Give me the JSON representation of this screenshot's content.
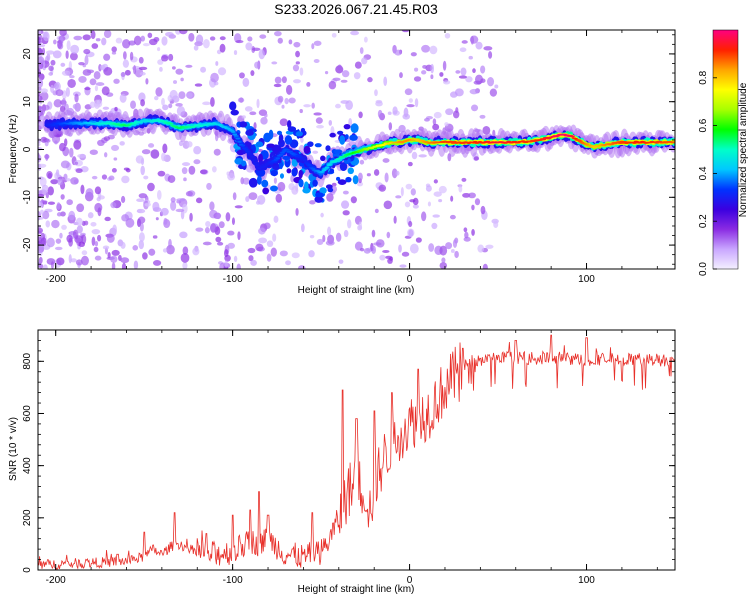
{
  "figure_title": "S233.2026.067.21.45.R03",
  "chart_data": [
    {
      "type": "heatmap",
      "name": "spectrogram",
      "xlabel": "Height of straight line (km)",
      "ylabel": "Frequency (Hz)",
      "xlim": [
        -210,
        150
      ],
      "ylim": [
        -25,
        25
      ],
      "xticks": [
        -200,
        -100,
        0,
        100
      ],
      "yticks": [
        -20,
        -10,
        0,
        10,
        20
      ],
      "colorbar": {
        "label": "Normalized spectral amplitude",
        "range": [
          0,
          1
        ],
        "ticks": [
          0.0,
          0.2,
          0.4,
          0.6,
          0.8
        ],
        "colormap": [
          "#f4f0ff",
          "#c9a6ff",
          "#8a2be2",
          "#3a00e0",
          "#0033ff",
          "#00c8ff",
          "#00ffc8",
          "#00ff00",
          "#a8ff00",
          "#ffff00",
          "#ffa500",
          "#ff2000",
          "#ff0080"
        ]
      },
      "ridge": {
        "x": [
          -205,
          -195,
          -185,
          -170,
          -160,
          -150,
          -140,
          -130,
          -120,
          -110,
          -100,
          -95,
          -90,
          -85,
          -80,
          -75,
          -70,
          -65,
          -60,
          -55,
          -50,
          -45,
          -40,
          -35,
          -30,
          -25,
          -20,
          -15,
          -10,
          -5,
          0,
          5,
          10,
          20,
          30,
          40,
          50,
          60,
          70,
          80,
          85,
          90,
          95,
          100,
          105,
          110,
          120,
          130,
          140,
          150
        ],
        "freq": [
          5,
          5.5,
          5.5,
          5.5,
          5,
          6,
          6,
          4.5,
          5,
          5.5,
          4,
          1,
          -1,
          -4,
          -3,
          -2,
          0,
          -1,
          -2,
          -4,
          -5,
          -3,
          -2,
          -1,
          -0.5,
          0,
          0.5,
          1,
          1.5,
          1.5,
          2,
          2,
          1.5,
          1.5,
          1.5,
          1.5,
          1.5,
          1.5,
          1.8,
          2.5,
          3,
          3,
          2,
          1,
          0.5,
          1,
          1.5,
          1.5,
          1.5,
          1.5
        ],
        "amplitude": [
          0.3,
          0.35,
          0.4,
          0.5,
          0.55,
          0.45,
          0.5,
          0.55,
          0.5,
          0.45,
          0.4,
          0.35,
          0.3,
          0.3,
          0.3,
          0.35,
          0.35,
          0.35,
          0.3,
          0.35,
          0.4,
          0.45,
          0.5,
          0.55,
          0.6,
          0.65,
          0.7,
          0.75,
          0.8,
          0.85,
          0.85,
          0.8,
          0.85,
          0.9,
          0.9,
          0.92,
          0.95,
          0.92,
          0.9,
          0.95,
          0.98,
          0.98,
          0.9,
          0.85,
          0.8,
          0.85,
          0.9,
          0.92,
          0.9,
          0.88
        ]
      }
    },
    {
      "type": "line",
      "name": "snr",
      "xlabel": "Height of straight line (km)",
      "ylabel": "SNR (10 * v/v)",
      "xlim": [
        -210,
        150
      ],
      "ylim": [
        0,
        920
      ],
      "xticks": [
        -200,
        -100,
        0,
        100
      ],
      "yticks": [
        0,
        200,
        400,
        600,
        800
      ],
      "color": "#e8302a",
      "series": [
        {
          "name": "SNR",
          "x": [
            -210,
            -190,
            -170,
            -160,
            -150,
            -145,
            -140,
            -135,
            -130,
            -125,
            -120,
            -110,
            -100,
            -95,
            -90,
            -85,
            -80,
            -75,
            -70,
            -60,
            -50,
            -45,
            -40,
            -35,
            -30,
            -25,
            -22,
            -20,
            -15,
            -10,
            -5,
            0,
            5,
            10,
            15,
            20,
            25,
            30,
            40,
            50,
            60,
            70,
            80,
            90,
            100,
            110,
            120,
            130,
            140,
            150
          ],
          "y": [
            20,
            25,
            30,
            35,
            50,
            80,
            60,
            90,
            100,
            80,
            70,
            60,
            70,
            90,
            110,
            100,
            120,
            90,
            60,
            50,
            70,
            120,
            200,
            300,
            340,
            300,
            220,
            330,
            420,
            480,
            530,
            560,
            590,
            600,
            650,
            700,
            740,
            780,
            805,
            810,
            815,
            810,
            815,
            810,
            805,
            810,
            805,
            808,
            806,
            805
          ],
          "peaks": [
            [
              -165,
              60
            ],
            [
              -150,
              145
            ],
            [
              -133,
              220
            ],
            [
              -115,
              140
            ],
            [
              -100,
              210
            ],
            [
              -90,
              230
            ],
            [
              -85,
              300
            ],
            [
              -80,
              210
            ],
            [
              -55,
              220
            ],
            [
              -38,
              690
            ],
            [
              -30,
              580
            ],
            [
              -20,
              610
            ],
            [
              -10,
              680
            ],
            [
              5,
              770
            ],
            [
              30,
              850
            ],
            [
              60,
              880
            ],
            [
              80,
              900
            ],
            [
              100,
              890
            ],
            [
              120,
              860
            ]
          ]
        }
      ]
    }
  ]
}
